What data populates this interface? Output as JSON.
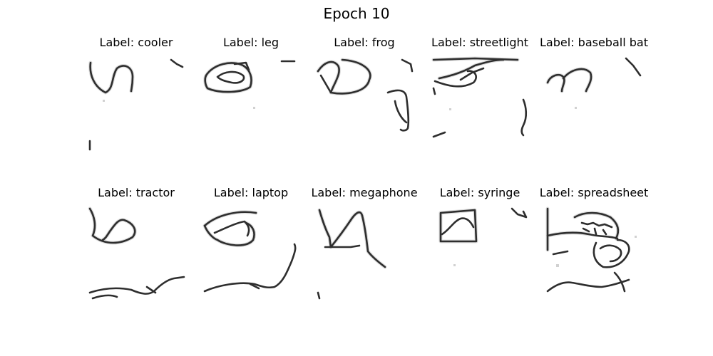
{
  "figure": {
    "title": "Epoch 10"
  },
  "panels": [
    {
      "label": "Label: cooler",
      "sketch": "cooler-sketch"
    },
    {
      "label": "Label: leg",
      "sketch": "leg-sketch"
    },
    {
      "label": "Label: frog",
      "sketch": "frog-sketch"
    },
    {
      "label": "Label: streetlight",
      "sketch": "streetlight-sketch"
    },
    {
      "label": "Label: baseball bat",
      "sketch": "baseball-bat-sketch"
    },
    {
      "label": "Label: tractor",
      "sketch": "tractor-sketch"
    },
    {
      "label": "Label: laptop",
      "sketch": "laptop-sketch"
    },
    {
      "label": "Label: megaphone",
      "sketch": "megaphone-sketch"
    },
    {
      "label": "Label: syringe",
      "sketch": "syringe-sketch"
    },
    {
      "label": "Label: spreadsheet",
      "sketch": "spreadsheet-sketch"
    }
  ]
}
